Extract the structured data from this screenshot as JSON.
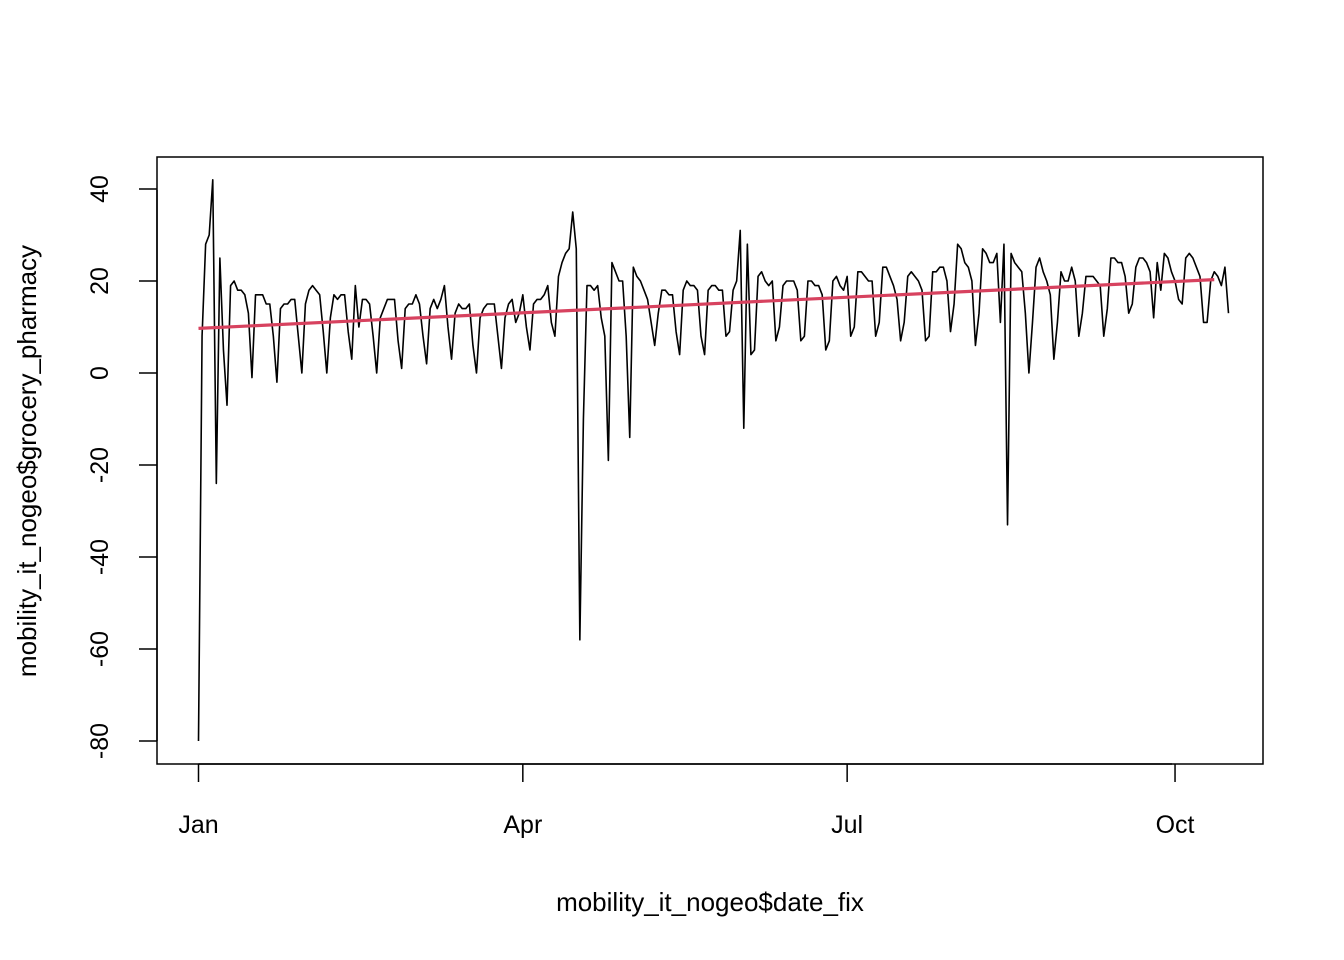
{
  "chart_data": {
    "type": "line",
    "title": "",
    "xlabel": "mobility_it_nogeo$date_fix",
    "ylabel": "mobility_it_nogeo$grocery_pharmacy",
    "x_ticks": [
      {
        "date": "2020-01-01",
        "label": "Jan"
      },
      {
        "date": "2020-04-01",
        "label": "Apr"
      },
      {
        "date": "2020-07-01",
        "label": "Jul"
      },
      {
        "date": "2020-10-01",
        "label": "Oct"
      }
    ],
    "y_ticks": [
      -80,
      -60,
      -40,
      -20,
      0,
      20,
      40
    ],
    "xlim": [
      "2019-12-20",
      "2020-10-30"
    ],
    "ylim": [
      -85,
      47
    ],
    "grid": false,
    "x_start_date": "2020-01-01",
    "series": [
      {
        "color": "#000000",
        "values": [
          -80,
          8,
          28,
          30,
          42,
          -24,
          25,
          5,
          -7,
          19,
          20,
          18,
          18,
          17,
          13,
          -1,
          17,
          17,
          17,
          15,
          15,
          8,
          -2,
          14,
          15,
          15,
          16,
          16,
          8,
          0,
          15,
          18,
          19,
          18,
          17,
          9,
          0,
          12,
          17,
          16,
          17,
          17,
          9,
          3,
          19,
          10,
          16,
          16,
          15,
          8,
          0,
          12,
          14,
          16,
          16,
          16,
          7,
          1,
          14,
          15,
          15,
          17,
          15,
          8,
          2,
          14,
          16,
          14,
          16,
          19,
          10,
          3,
          13,
          15,
          14,
          14,
          15,
          6,
          0,
          12,
          14,
          15,
          15,
          15,
          8,
          1,
          12,
          15,
          16,
          11,
          13,
          17,
          10,
          5,
          15,
          16,
          16,
          17,
          19,
          11,
          8,
          21,
          24,
          26,
          27,
          35,
          27,
          -58,
          -10,
          19,
          19,
          18,
          19,
          12,
          8,
          -19,
          24,
          22,
          20,
          20,
          8,
          -14,
          23,
          21,
          20,
          18,
          16,
          11,
          6,
          13,
          18,
          18,
          17,
          17,
          9,
          4,
          18,
          20,
          19,
          19,
          18,
          8,
          4,
          18,
          19,
          19,
          18,
          18,
          8,
          9,
          18,
          20,
          31,
          -12,
          28,
          4,
          5,
          21,
          22,
          20,
          19,
          20,
          7,
          10,
          19,
          20,
          20,
          20,
          18,
          7,
          8,
          20,
          20,
          19,
          19,
          17,
          5,
          7,
          20,
          21,
          19,
          18,
          21,
          8,
          10,
          22,
          22,
          21,
          20,
          20,
          8,
          11,
          23,
          23,
          21,
          19,
          16,
          7,
          11,
          21,
          22,
          21,
          20,
          18,
          7,
          8,
          22,
          22,
          23,
          23,
          20,
          9,
          15,
          28,
          27,
          24,
          23,
          20,
          6,
          13,
          27,
          26,
          24,
          24,
          26,
          11,
          28,
          -33,
          26,
          24,
          23,
          22,
          13,
          0,
          11,
          23,
          25,
          22,
          20,
          17,
          3,
          11,
          22,
          20,
          20,
          23,
          20,
          8,
          13,
          21,
          21,
          21,
          20,
          19,
          8,
          14,
          25,
          25,
          24,
          24,
          21,
          13,
          15,
          23,
          25,
          25,
          24,
          22,
          12,
          24,
          18,
          26,
          25,
          22,
          20,
          16,
          15,
          25,
          26,
          25,
          23,
          21,
          11,
          11,
          20,
          22,
          21,
          19,
          23,
          13
        ]
      },
      {
        "color": "#D7425F",
        "values": [
          9.7,
          20.3
        ],
        "x": [
          "2020-01-01",
          "2020-10-12"
        ]
      }
    ]
  }
}
